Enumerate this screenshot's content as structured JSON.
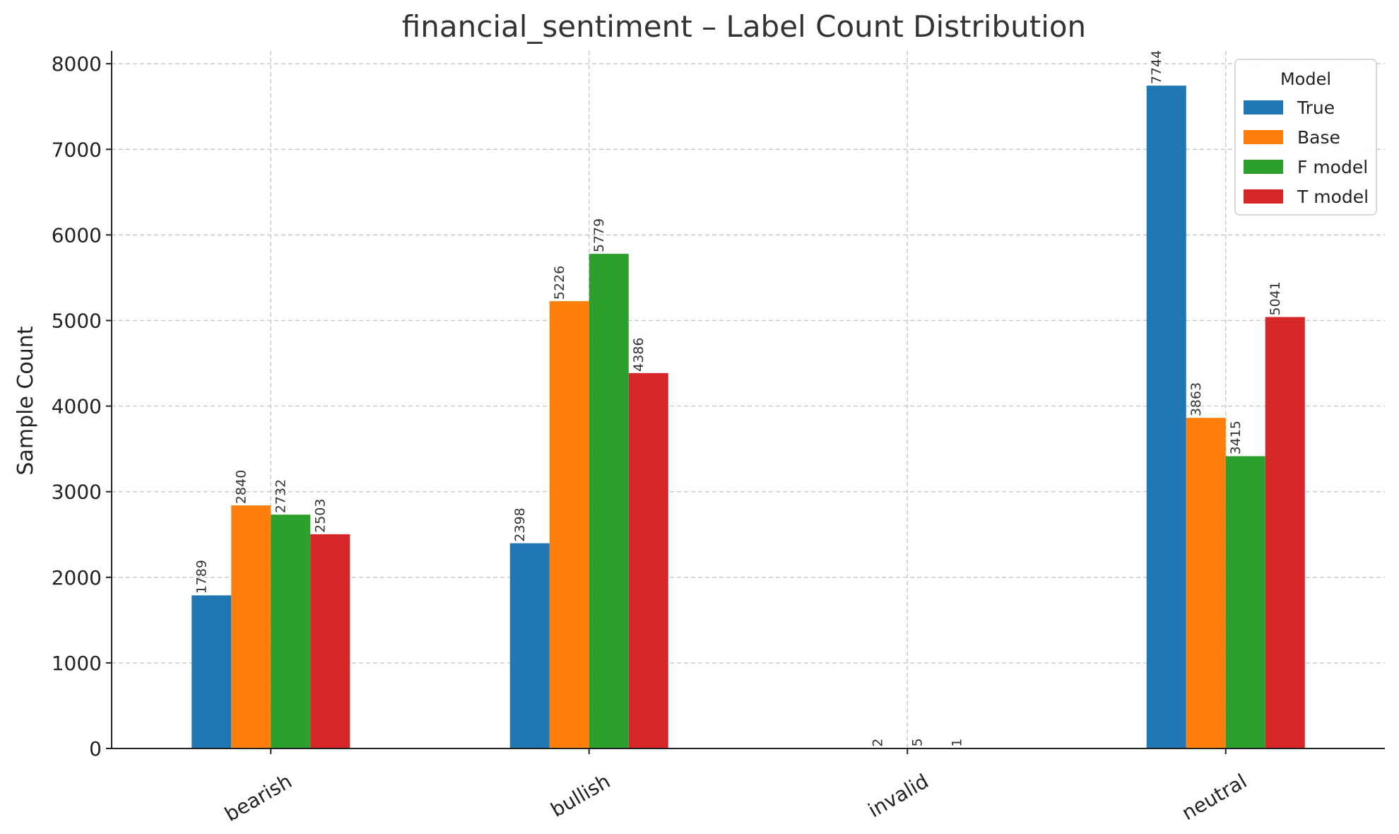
{
  "chart_data": {
    "type": "bar",
    "title": "financial_sentiment – Label Count Distribution",
    "xlabel": "",
    "ylabel": "Sample Count",
    "categories": [
      "bearish",
      "bullish",
      "invalid",
      "neutral"
    ],
    "series": [
      {
        "name": "True",
        "color": "#1f77b4",
        "values": [
          1789,
          2398,
          0,
          7744
        ],
        "labels": [
          "1789",
          "2398",
          "",
          "7744"
        ]
      },
      {
        "name": "Base",
        "color": "#ff7f0e",
        "values": [
          2840,
          5226,
          2,
          3863
        ],
        "labels": [
          "2840",
          "5226",
          "2",
          "3863"
        ]
      },
      {
        "name": "F model",
        "color": "#2ca02c",
        "values": [
          2732,
          5779,
          5,
          3415
        ],
        "labels": [
          "2732",
          "5779",
          "5",
          "3415"
        ]
      },
      {
        "name": "T model",
        "color": "#d62728",
        "values": [
          2503,
          4386,
          1,
          5041
        ],
        "labels": [
          "2503",
          "4386",
          "1",
          "5041"
        ]
      }
    ],
    "ylim": [
      0,
      8150
    ],
    "yticks": [
      "0",
      "1000",
      "2000",
      "3000",
      "4000",
      "5000",
      "6000",
      "7000",
      "8000"
    ],
    "grid": true,
    "legend": {
      "title": "Model",
      "position": "top-right"
    }
  }
}
